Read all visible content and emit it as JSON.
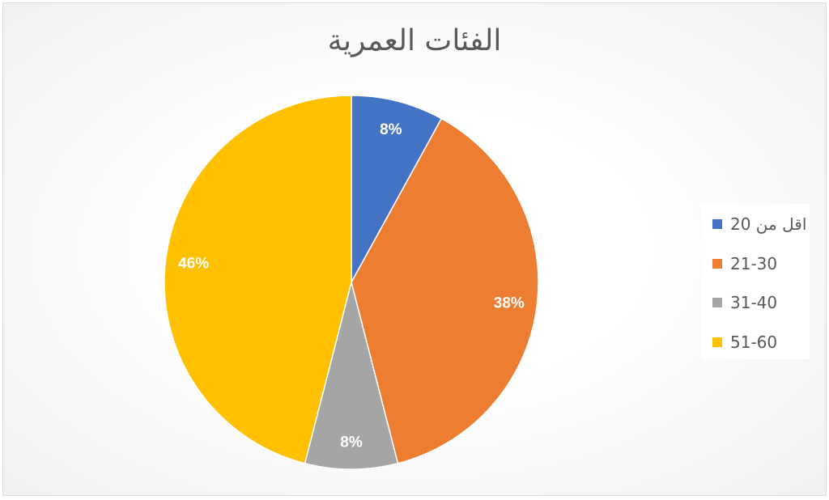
{
  "chart_data": {
    "type": "pie",
    "title": "الفئات العمرية",
    "categories": [
      "اقل من 20",
      "21-30",
      "31-40",
      "51-60"
    ],
    "values": [
      8,
      38,
      8,
      46
    ],
    "data_labels": [
      "8%",
      "38%",
      "8%",
      "46%"
    ],
    "colors": [
      "#4472c4",
      "#ed7d31",
      "#a5a5a5",
      "#ffc000"
    ],
    "legend_position": "right",
    "start_angle": "top, clockwise"
  }
}
